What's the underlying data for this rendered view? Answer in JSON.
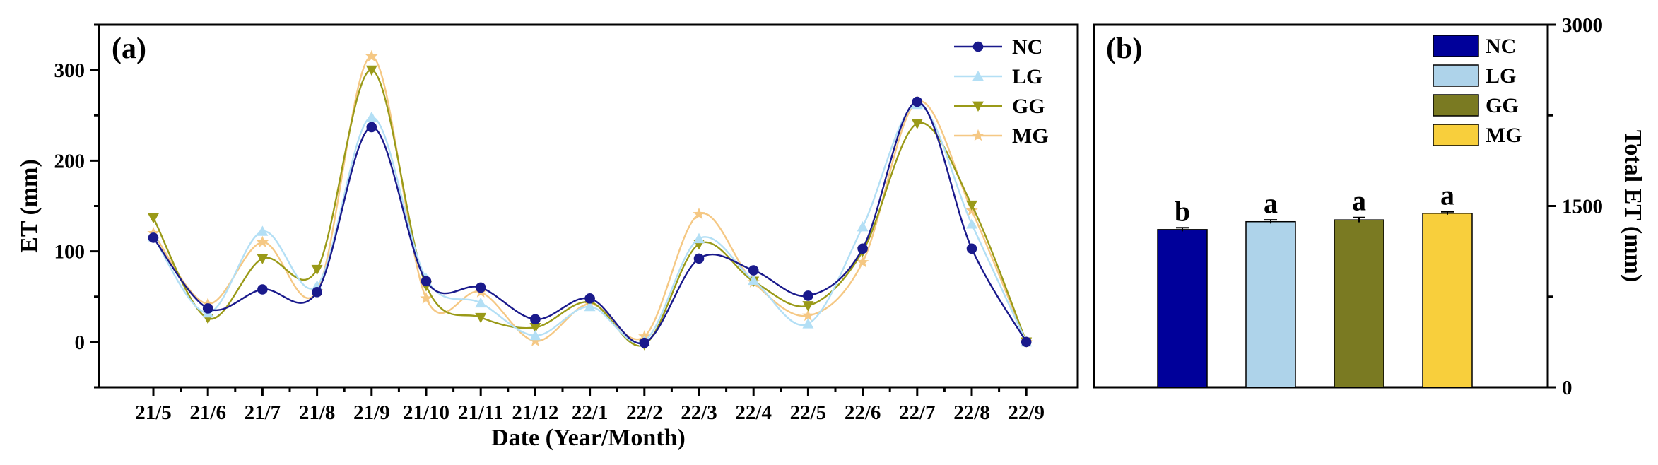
{
  "chart_data": [
    {
      "panel_label": "(a)",
      "type": "line",
      "xlabel": "Date (Year/Month)",
      "ylabel": "ET (mm)",
      "ylim": [
        -50,
        350
      ],
      "yticks": [
        0,
        100,
        200,
        300
      ],
      "categories": [
        "21/5",
        "21/6",
        "21/7",
        "21/8",
        "21/9",
        "21/10",
        "21/11",
        "21/12",
        "22/1",
        "22/2",
        "22/3",
        "22/4",
        "22/5",
        "22/6",
        "22/7",
        "22/8",
        "22/9"
      ],
      "legend_position": "top-right",
      "series": [
        {
          "name": "NC",
          "color": "#1a1a8c",
          "marker": "circle",
          "values": [
            115,
            37,
            58,
            55,
            237,
            67,
            60,
            25,
            48,
            -1,
            92,
            79,
            51,
            103,
            265,
            103,
            0
          ]
        },
        {
          "name": "LG",
          "color": "#b3dff5",
          "marker": "triangle-up",
          "values": [
            116,
            32,
            122,
            62,
            248,
            70,
            43,
            7,
            39,
            1,
            114,
            68,
            20,
            127,
            262,
            130,
            0
          ]
        },
        {
          "name": "GG",
          "color": "#9a9a18",
          "marker": "triangle-down",
          "values": [
            137,
            26,
            92,
            80,
            300,
            62,
            27,
            16,
            44,
            -3,
            108,
            67,
            40,
            100,
            241,
            151,
            0
          ]
        },
        {
          "name": "MG",
          "color": "#f5c884",
          "marker": "star",
          "values": [
            120,
            42,
            110,
            56,
            315,
            48,
            55,
            1,
            42,
            6,
            141,
            66,
            29,
            88,
            265,
            145,
            0
          ]
        }
      ]
    },
    {
      "panel_label": "(b)",
      "type": "bar",
      "ylabel": "Total ET (mm)",
      "ylim": [
        0,
        3000
      ],
      "yticks": [
        0,
        1500,
        3000
      ],
      "categories": [
        "NC",
        "LG",
        "GG",
        "MG"
      ],
      "values": [
        1305,
        1370,
        1385,
        1440
      ],
      "errors": [
        15,
        15,
        20,
        12
      ],
      "significance": [
        "b",
        "a",
        "a",
        "a"
      ],
      "colors": [
        "#00009a",
        "#aed3ea",
        "#7a7a22",
        "#f8cf3c"
      ],
      "legend_position": "top-right"
    }
  ]
}
